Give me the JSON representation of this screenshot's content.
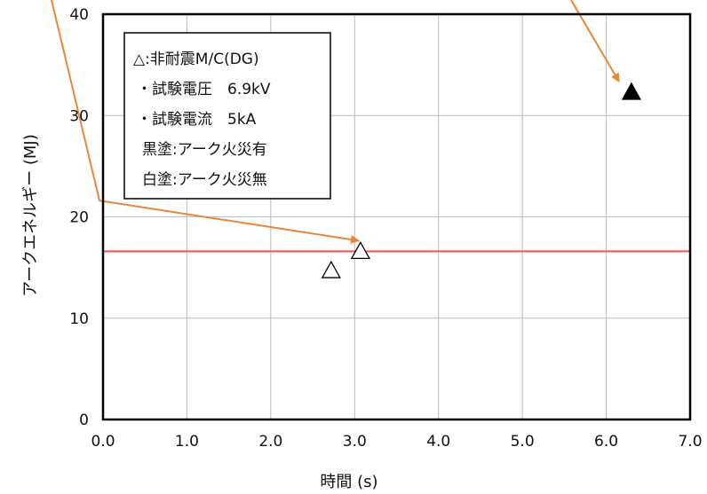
{
  "chart_data": {
    "type": "scatter",
    "xlabel": "時間 (s)",
    "ylabel": "アークエネルギー (MJ)",
    "xlim": [
      0,
      7
    ],
    "ylim": [
      0,
      40
    ],
    "x_ticks": [
      "0.0",
      "1.0",
      "2.0",
      "3.0",
      "4.0",
      "5.0",
      "6.0",
      "7.0"
    ],
    "y_ticks": [
      "0",
      "10",
      "20",
      "30",
      "40"
    ],
    "grid": true,
    "legend_position": "top-left",
    "legend_lines": [
      "△:非耐震M/C(DG)",
      "・試験電圧　6.9kV",
      "・試験電流　5kA",
      "黒塗:アーク火災有",
      "白塗:アーク火災無"
    ],
    "points": [
      {
        "x": 2.72,
        "y": 14.7,
        "filled": false
      },
      {
        "x": 3.07,
        "y": 16.6,
        "filled": false
      },
      {
        "x": 6.3,
        "y": 32.3,
        "filled": true
      }
    ],
    "threshold_line": {
      "y": 16.6,
      "color": "#ff4d4d"
    },
    "arrow_color": "#e8873a"
  }
}
